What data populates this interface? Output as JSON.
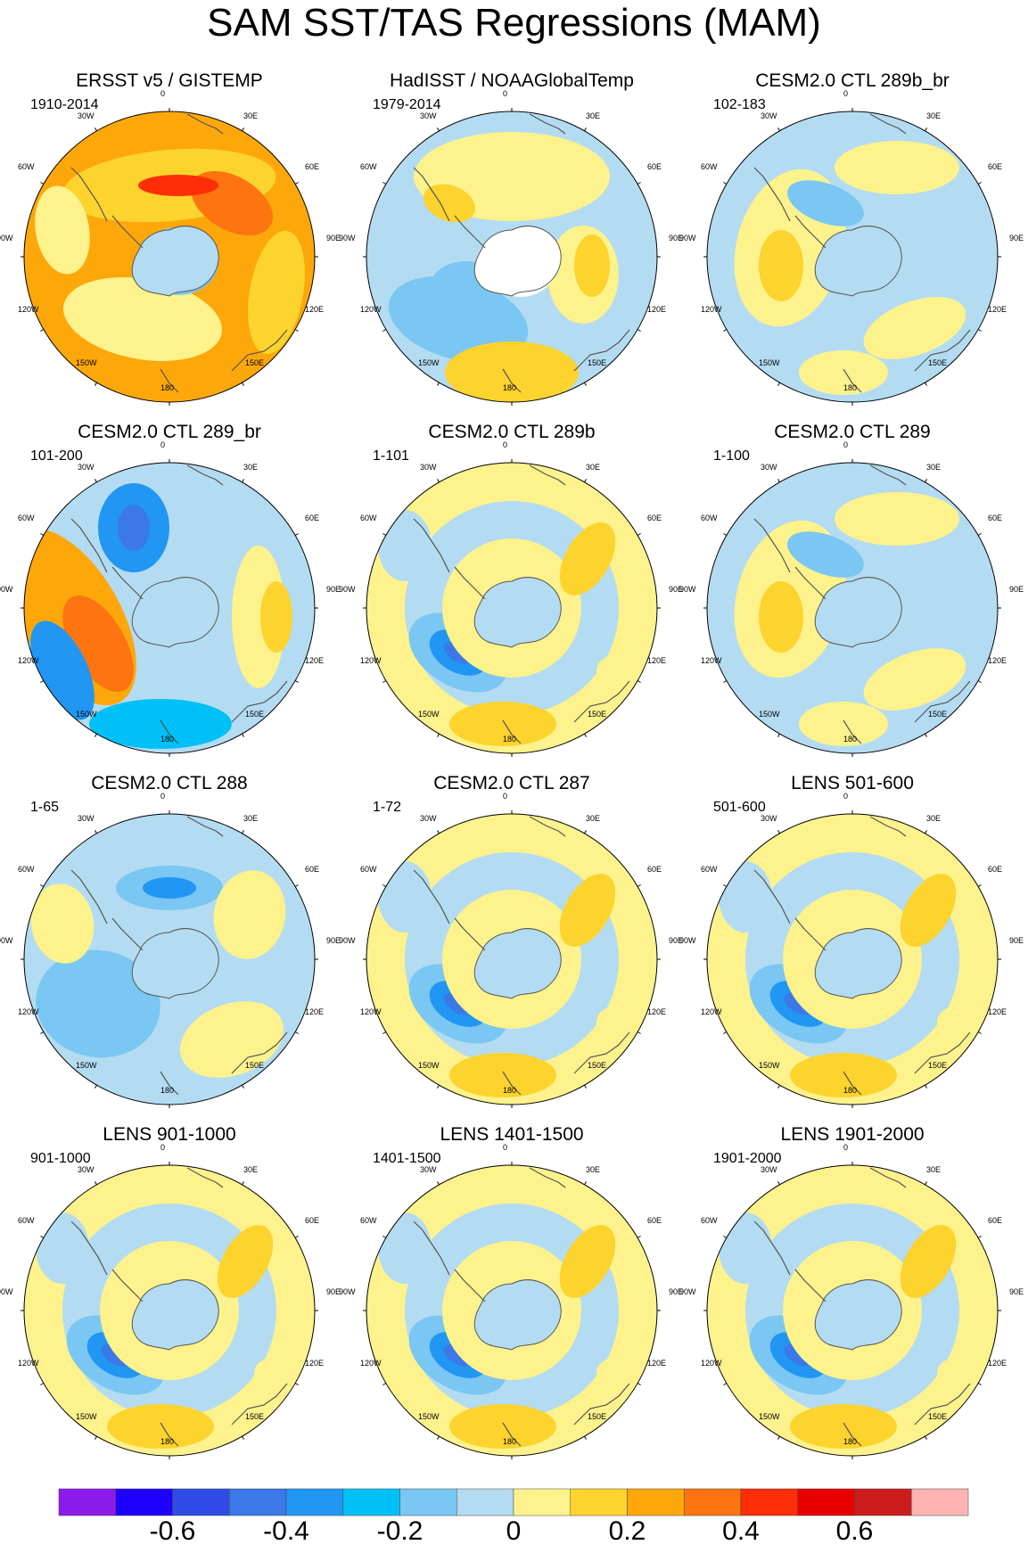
{
  "title": "SAM SST/TAS Regressions (MAM)",
  "lon_labels": [
    "0",
    "30E",
    "60E",
    "90E",
    "120E",
    "150E",
    "180",
    "150W",
    "120W",
    "90W",
    "60W",
    "30W"
  ],
  "panels": [
    {
      "title": "ERSST v5 / GISTEMP",
      "period": "1910-2014",
      "pattern": "warm",
      "missing_antarctica": false
    },
    {
      "title": "HadISST / NOAAGlobalTemp",
      "period": "1979-2014",
      "pattern": "obs2",
      "missing_antarctica": true
    },
    {
      "title": "CESM2.0 CTL 289b_br",
      "period": "102-183",
      "pattern": "weak",
      "missing_antarctica": false
    },
    {
      "title": "CESM2.0 CTL 289_br",
      "period": "101-200",
      "pattern": "dipole",
      "missing_antarctica": false
    },
    {
      "title": "CESM2.0 CTL 289b",
      "period": "1-101",
      "pattern": "ring",
      "missing_antarctica": false
    },
    {
      "title": "CESM2.0 CTL 289",
      "period": "1-100",
      "pattern": "weak",
      "missing_antarctica": false
    },
    {
      "title": "CESM2.0 CTL 288",
      "period": "1-65",
      "pattern": "cool",
      "missing_antarctica": false
    },
    {
      "title": "CESM2.0 CTL 287",
      "period": "1-72",
      "pattern": "ring",
      "missing_antarctica": false
    },
    {
      "title": "LENS 501-600",
      "period": "501-600",
      "pattern": "ring",
      "missing_antarctica": false
    },
    {
      "title": "LENS 901-1000",
      "period": "901-1000",
      "pattern": "ring",
      "missing_antarctica": false
    },
    {
      "title": "LENS 1401-1500",
      "period": "1401-1500",
      "pattern": "ring",
      "missing_antarctica": false
    },
    {
      "title": "LENS 1901-2000",
      "period": "1901-2000",
      "pattern": "ring",
      "missing_antarctica": false
    }
  ],
  "colorbar": {
    "colors": [
      "#8c1aeb",
      "#1e00ff",
      "#2f4ce6",
      "#3b78e8",
      "#2196f3",
      "#00c0f8",
      "#79c7f2",
      "#b3dcf2",
      "#fdf28c",
      "#fdd32d",
      "#fda70a",
      "#fd7410",
      "#fd2e08",
      "#e80000",
      "#cc1c1c",
      "#ffb3b3"
    ],
    "labels": [
      "-0.6",
      "-0.4",
      "-0.2",
      "0",
      "0.2",
      "0.4",
      "0.6"
    ],
    "label_values": [
      -0.6,
      -0.4,
      -0.2,
      0,
      0.2,
      0.4,
      0.6
    ],
    "range": [
      -0.8,
      0.8
    ],
    "interval": 0.1
  }
}
